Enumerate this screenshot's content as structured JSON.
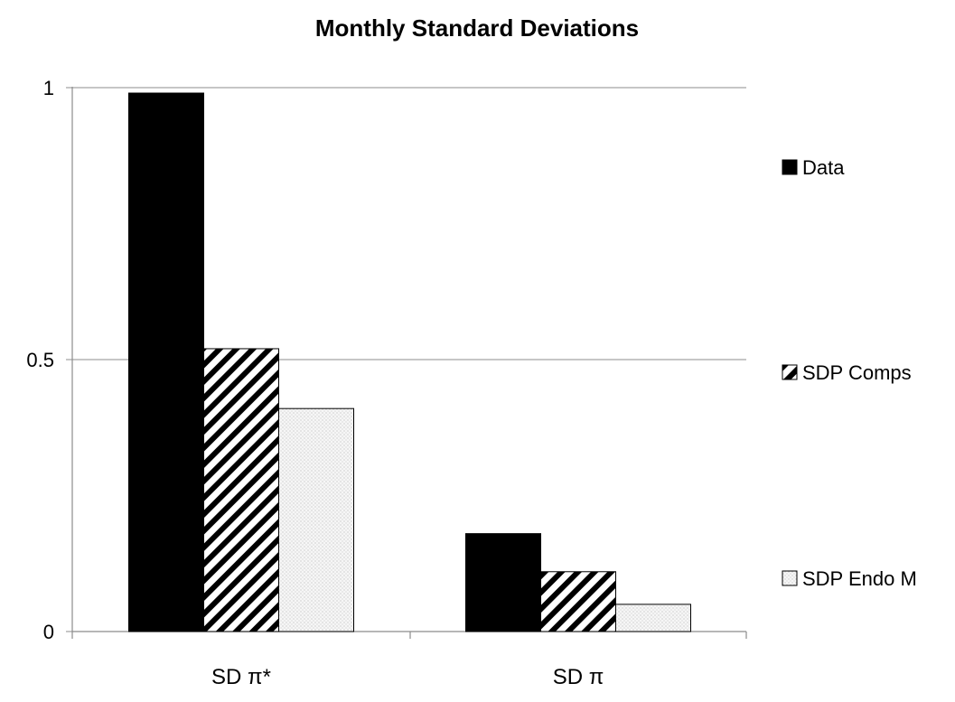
{
  "chart_data": {
    "type": "bar",
    "title": "Monthly Standard Deviations",
    "xlabel": "",
    "ylabel": "",
    "categories": [
      "SD π*",
      "SD π"
    ],
    "series": [
      {
        "name": "Data",
        "values": [
          0.99,
          0.18
        ],
        "color": "#000000",
        "pattern": "solid"
      },
      {
        "name": "SDP Comps",
        "values": [
          0.52,
          0.11
        ],
        "color": "#000000",
        "pattern": "diagonal-hatch"
      },
      {
        "name": "SDP Endo M",
        "values": [
          0.41,
          0.05
        ],
        "color": "#f4f4f4",
        "pattern": "dots"
      }
    ],
    "ylim": [
      0,
      1
    ],
    "yticks": [
      {
        "value": 0,
        "label": "0"
      },
      {
        "value": 0.5,
        "label": "0.5"
      },
      {
        "value": 1,
        "label": "1"
      }
    ],
    "grid": true,
    "legend_position": "right"
  }
}
